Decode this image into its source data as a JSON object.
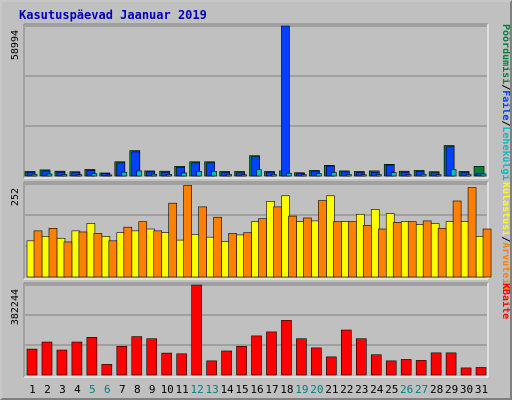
{
  "chart_data": {
    "type": "bar",
    "title": "Kasutuspäevad Jaanuar 2019",
    "days": [
      "1",
      "2",
      "3",
      "4",
      "5",
      "6",
      "7",
      "8",
      "9",
      "10",
      "11",
      "12",
      "13",
      "14",
      "15",
      "16",
      "17",
      "18",
      "19",
      "20",
      "21",
      "22",
      "23",
      "24",
      "25",
      "26",
      "27",
      "28",
      "29",
      "30",
      "31"
    ],
    "weekend_days": [
      "5",
      "6",
      "12",
      "13",
      "19",
      "20",
      "26",
      "27"
    ],
    "colors": {
      "bg": "#c0c0c0",
      "grid": "#808080",
      "title": "#0000c0",
      "hits": "#008040",
      "files": "#0040ff",
      "pages": "#00c0c0",
      "visits": "#ffff00",
      "sites": "#ff8000",
      "kbytes": "#ff0000",
      "weekend": "#008080"
    },
    "panels": {
      "top": {
        "tick_label": "58994",
        "max": 58994,
        "axis_legend": [
          {
            "text": "Pöördumisi",
            "color": "#008040"
          },
          {
            "text": "/",
            "color": "#000000"
          },
          {
            "text": "Faile",
            "color": "#0040ff"
          },
          {
            "text": "/",
            "color": "#000000"
          },
          {
            "text": "Lehekülgi",
            "color": "#00c0c0"
          }
        ],
        "series": [
          {
            "name": "Pöördumisi",
            "values": [
              1800,
              2400,
              1900,
              1700,
              2600,
              1200,
              5600,
              10000,
              2000,
              1900,
              3800,
              5600,
              5600,
              1800,
              1800,
              8000,
              1800,
              2000,
              1300,
              2200,
              4200,
              2000,
              1800,
              2000,
              4600,
              1900,
              2200,
              1700,
              12000,
              1800,
              3800
            ]
          },
          {
            "name": "Faile",
            "values": [
              1500,
              2000,
              1500,
              1400,
              2200,
              1000,
              5200,
              9500,
              1600,
              1500,
              3400,
              5200,
              5200,
              1400,
              1300,
              7600,
              1500,
              58994,
              1000,
              1900,
              3900,
              1600,
              1400,
              1500,
              4300,
              1500,
              1800,
              1300,
              11500,
              1400,
              1000
            ]
          },
          {
            "name": "Lehekülgi",
            "values": [
              700,
              800,
              600,
              500,
              900,
              400,
              1500,
              2000,
              700,
              600,
              1200,
              1800,
              1800,
              600,
              500,
              2500,
              600,
              1100,
              500,
              900,
              1400,
              600,
              500,
              600,
              1300,
              500,
              700,
              500,
              2500,
              600,
              800
            ]
          }
        ]
      },
      "middle": {
        "tick_label": "252",
        "max": 252,
        "axis_legend": [
          {
            "text": "Külastusi",
            "color": "#ffff00"
          },
          {
            "text": "/",
            "color": "#000000"
          },
          {
            "text": "Arvuteid",
            "color": "#ff8000"
          }
        ],
        "series": [
          {
            "name": "Külastusi",
            "values": [
              98,
              110,
              105,
              125,
              145,
              110,
              120,
              125,
              130,
              120,
              100,
              115,
              108,
              96,
              114,
              150,
              205,
              220,
              150,
              152,
              220,
              150,
              170,
              183,
              172,
              150,
              142,
              145,
              150,
              150,
              110
            ]
          },
          {
            "name": "Arvuteid",
            "values": [
              125,
              132,
              95,
              122,
              118,
              98,
              135,
              150,
              125,
              200,
              248,
              190,
              162,
              118,
              120,
              158,
              190,
              165,
              160,
              207,
              150,
              150,
              140,
              130,
              148,
              150,
              152,
              132,
              206,
              242,
              130
            ]
          }
        ]
      },
      "bottom": {
        "tick_label": "382244",
        "max": 382244,
        "axis_legend": [
          {
            "text": "KBaite",
            "color": "#ff0000"
          }
        ],
        "series": [
          {
            "name": "KBaite",
            "values": [
              110000,
              140000,
              106000,
              140000,
              160000,
              45000,
              122000,
              163000,
              154000,
              93000,
              90000,
              382244,
              60000,
              102000,
              122000,
              166000,
              183000,
              232000,
              154000,
              115000,
              77000,
              191000,
              154000,
              86000,
              60000,
              66000,
              62000,
              94000,
              94000,
              30000,
              32000
            ]
          }
        ]
      }
    }
  }
}
